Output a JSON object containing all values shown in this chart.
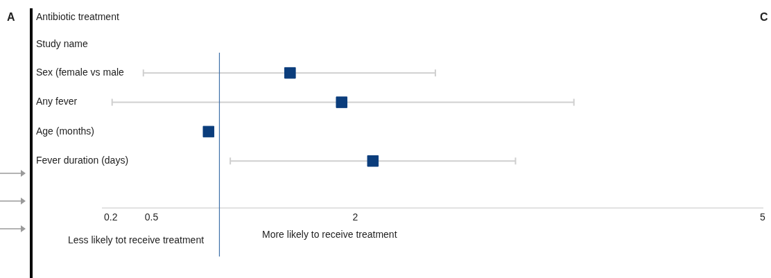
{
  "chart_data": {
    "type": "scatter",
    "orientation": "horizontal",
    "title": "Antibiotic treatment",
    "categories": [
      "Sex (female vs male",
      "Any fever",
      "Age (months)",
      "Fever duration (days)"
    ],
    "values": [
      1.52,
      1.9,
      0.92,
      2.13
    ],
    "errors": [
      [
        0.44,
        2.59
      ],
      [
        0.21,
        3.61
      ],
      null,
      [
        1.08,
        3.18
      ]
    ],
    "color": "#0b3d7c",
    "xlim": [
      0.14,
      5
    ],
    "xticks": [
      0.2,
      0.5,
      2,
      5
    ],
    "ref_lines": [
      {
        "axis": "x",
        "value": 1,
        "color": "#3e6fa8"
      }
    ],
    "annotations": [
      "A",
      "C",
      "Study name",
      "Less likely tot receive treatment",
      "More likely to receive treatment"
    ],
    "grid": false,
    "legend": false,
    "marker": "square"
  }
}
